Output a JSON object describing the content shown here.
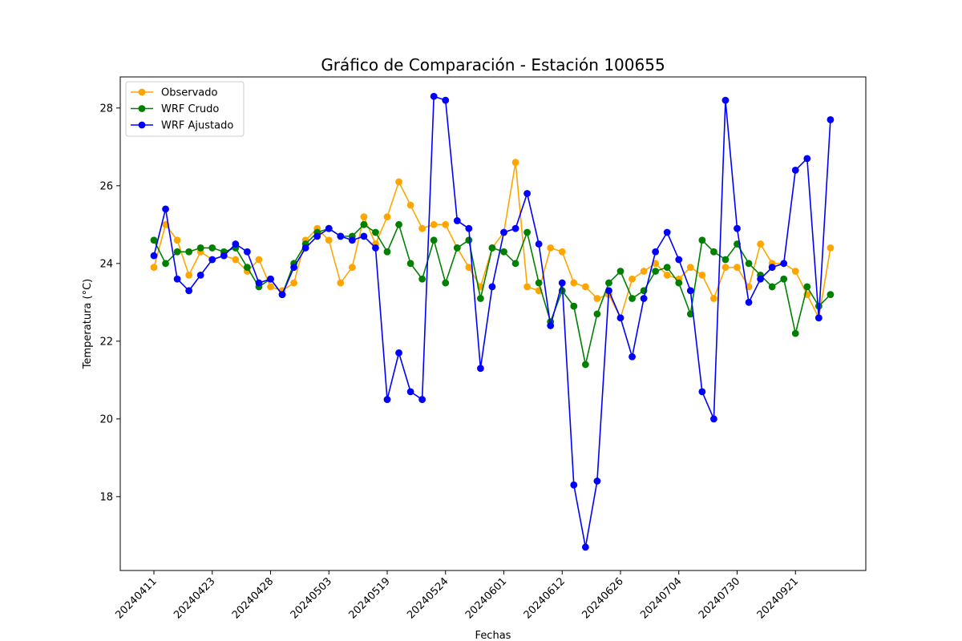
{
  "chart_data": {
    "type": "line",
    "title": "Gráfico de Comparación - Estación 100655",
    "xlabel": "Fechas",
    "ylabel": "Temperatura (°C)",
    "ylim": [
      16.1,
      28.8
    ],
    "yticks": [
      18,
      20,
      22,
      24,
      26,
      28
    ],
    "xticks": [
      {
        "index": 0,
        "label": "20240411"
      },
      {
        "index": 5,
        "label": "20240423"
      },
      {
        "index": 10,
        "label": "20240428"
      },
      {
        "index": 15,
        "label": "20240503"
      },
      {
        "index": 20,
        "label": "20240519"
      },
      {
        "index": 25,
        "label": "20240524"
      },
      {
        "index": 30,
        "label": "20240601"
      },
      {
        "index": 35,
        "label": "20240612"
      },
      {
        "index": 40,
        "label": "20240626"
      },
      {
        "index": 45,
        "label": "20240704"
      },
      {
        "index": 50,
        "label": "20240730"
      },
      {
        "index": 55,
        "label": "20240921"
      }
    ],
    "grid": false,
    "legend_position": "upper-left",
    "series": [
      {
        "name": "Observado",
        "color": "#FFA500",
        "values": [
          23.9,
          25.0,
          24.6,
          23.7,
          24.3,
          24.1,
          24.2,
          24.1,
          23.8,
          24.1,
          23.4,
          23.3,
          23.5,
          24.6,
          24.9,
          24.6,
          23.5,
          23.9,
          25.2,
          24.5,
          25.2,
          26.1,
          25.5,
          24.9,
          25.0,
          25.0,
          24.4,
          23.9,
          23.4,
          24.4,
          24.8,
          26.6,
          23.4,
          23.3,
          24.4,
          24.3,
          23.5,
          23.4,
          23.1,
          23.2,
          22.6,
          23.6,
          23.8,
          24.0,
          23.7,
          23.6,
          23.9,
          23.7,
          23.1,
          23.9,
          23.9,
          23.4,
          24.5,
          24.0,
          24.0,
          23.8,
          23.2,
          22.6,
          24.4
        ]
      },
      {
        "name": "WRF Crudo",
        "color": "#008000",
        "values": [
          24.6,
          24.0,
          24.3,
          24.3,
          24.4,
          24.4,
          24.3,
          24.4,
          23.9,
          23.4,
          23.6,
          23.2,
          24.0,
          24.5,
          24.8,
          24.9,
          24.7,
          24.7,
          25.0,
          24.8,
          24.3,
          25.0,
          24.0,
          23.6,
          24.6,
          23.5,
          24.4,
          24.6,
          23.1,
          24.4,
          24.3,
          24.0,
          24.8,
          23.5,
          22.5,
          23.3,
          22.9,
          21.4,
          22.7,
          23.5,
          23.8,
          23.1,
          23.3,
          23.8,
          23.9,
          23.5,
          22.7,
          24.6,
          24.3,
          24.1,
          24.5,
          24.0,
          23.7,
          23.4,
          23.6,
          22.2,
          23.4,
          22.9,
          23.2
        ]
      },
      {
        "name": "WRF Ajustado",
        "color": "#0000FF",
        "values": [
          24.2,
          25.4,
          23.6,
          23.3,
          23.7,
          24.1,
          24.2,
          24.5,
          24.3,
          23.5,
          23.6,
          23.2,
          23.9,
          24.4,
          24.7,
          24.9,
          24.7,
          24.6,
          24.7,
          24.4,
          20.5,
          21.7,
          20.7,
          20.5,
          28.3,
          28.2,
          25.1,
          24.9,
          21.3,
          23.4,
          24.8,
          24.9,
          25.8,
          24.5,
          22.4,
          23.5,
          18.3,
          16.7,
          18.4,
          23.3,
          22.6,
          21.6,
          23.1,
          24.3,
          24.8,
          24.1,
          23.3,
          20.7,
          20.0,
          28.2,
          24.9,
          23.0,
          23.6,
          23.9,
          24.0,
          26.4,
          26.7,
          22.6,
          27.7
        ]
      }
    ]
  }
}
